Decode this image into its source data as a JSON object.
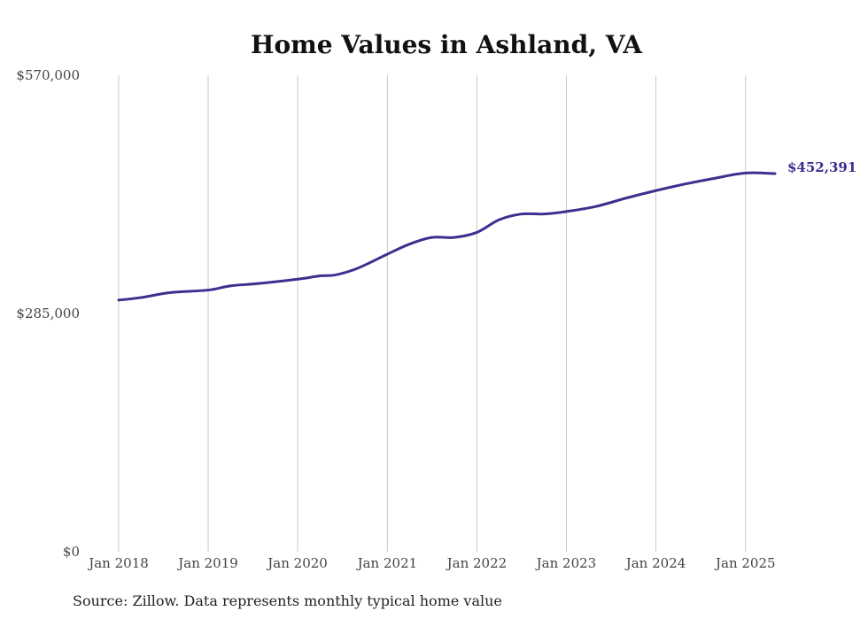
{
  "chart_data": {
    "type": "line",
    "title": "Home Values in Ashland, VA",
    "xlabel": "",
    "ylabel": "",
    "ylim": [
      0,
      570000
    ],
    "yticks": [
      {
        "value": 0,
        "label": "$0"
      },
      {
        "value": 285000,
        "label": "$285,000"
      },
      {
        "value": 570000,
        "label": "$570,000"
      }
    ],
    "xlim": [
      "2018-01-01",
      "2025-05-01"
    ],
    "xticks": [
      {
        "date": "2018-01-01",
        "label": "Jan 2018"
      },
      {
        "date": "2019-01-01",
        "label": "Jan 2019"
      },
      {
        "date": "2020-01-01",
        "label": "Jan 2020"
      },
      {
        "date": "2021-01-01",
        "label": "Jan 2021"
      },
      {
        "date": "2022-01-01",
        "label": "Jan 2022"
      },
      {
        "date": "2023-01-01",
        "label": "Jan 2023"
      },
      {
        "date": "2024-01-01",
        "label": "Jan 2024"
      },
      {
        "date": "2025-01-01",
        "label": "Jan 2025"
      }
    ],
    "grid": {
      "vertical": true,
      "horizontal": false
    },
    "series": [
      {
        "color": "#3d2f8f",
        "end_label": "$452,391",
        "points": [
          {
            "x": "2018-01-01",
            "y": 301000
          },
          {
            "x": "2018-04-01",
            "y": 304000
          },
          {
            "x": "2018-08-01",
            "y": 310000
          },
          {
            "x": "2019-01-01",
            "y": 313000
          },
          {
            "x": "2019-04-01",
            "y": 318000
          },
          {
            "x": "2019-08-01",
            "y": 321000
          },
          {
            "x": "2020-01-01",
            "y": 326000
          },
          {
            "x": "2020-04-01",
            "y": 330000
          },
          {
            "x": "2020-06-01",
            "y": 331000
          },
          {
            "x": "2020-09-01",
            "y": 339000
          },
          {
            "x": "2021-01-01",
            "y": 356000
          },
          {
            "x": "2021-04-01",
            "y": 368000
          },
          {
            "x": "2021-07-01",
            "y": 376000
          },
          {
            "x": "2021-10-01",
            "y": 376000
          },
          {
            "x": "2022-01-01",
            "y": 382000
          },
          {
            "x": "2022-04-01",
            "y": 397000
          },
          {
            "x": "2022-07-01",
            "y": 404000
          },
          {
            "x": "2022-10-01",
            "y": 404000
          },
          {
            "x": "2023-01-01",
            "y": 407000
          },
          {
            "x": "2023-05-01",
            "y": 413000
          },
          {
            "x": "2023-09-01",
            "y": 423000
          },
          {
            "x": "2024-01-01",
            "y": 432000
          },
          {
            "x": "2024-05-01",
            "y": 440000
          },
          {
            "x": "2024-09-01",
            "y": 447000
          },
          {
            "x": "2025-01-01",
            "y": 453000
          },
          {
            "x": "2025-05-01",
            "y": 452391
          }
        ]
      }
    ]
  },
  "footer": {
    "source_text": "Source: Zillow. Data represents monthly typical home value"
  }
}
